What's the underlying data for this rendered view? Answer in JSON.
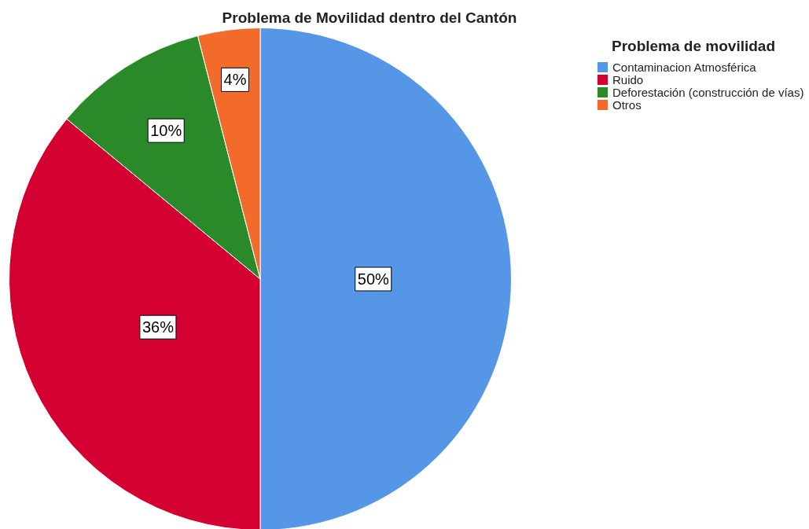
{
  "chart_data": {
    "type": "pie",
    "title": "Problema de Movilidad dentro del Cantón",
    "legend_title": "Problema de movilidad",
    "categories": [
      "Contaminacion Atmosférica",
      "Ruido",
      "Deforestación (construcción de vías)",
      "Otros"
    ],
    "values": [
      50,
      36,
      10,
      4
    ],
    "value_labels": [
      "50%",
      "36%",
      "10%",
      "4%"
    ],
    "colors": [
      "#5596e6",
      "#d50032",
      "#2a8a2a",
      "#f26b2b"
    ],
    "legend": "top right"
  }
}
